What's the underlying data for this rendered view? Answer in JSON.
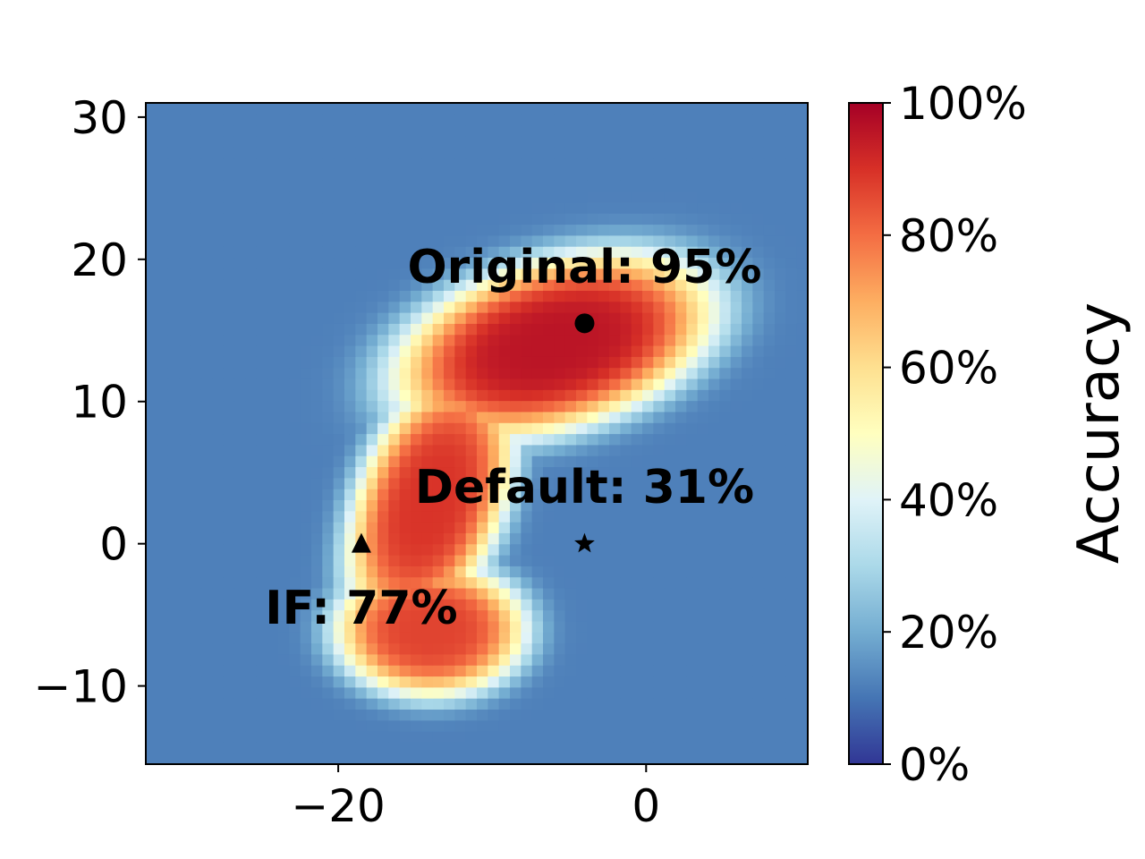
{
  "chart_data": {
    "type": "heatmap",
    "title": "",
    "xlabel": "",
    "ylabel": "",
    "xlim": [
      -32.5,
      10.5
    ],
    "ylim": [
      -15.5,
      31
    ],
    "x_ticks": [
      {
        "value": -20,
        "label": "−20"
      },
      {
        "value": 0,
        "label": "0"
      }
    ],
    "y_ticks": [
      {
        "value": 30,
        "label": "30"
      },
      {
        "value": 20,
        "label": "20"
      },
      {
        "value": 10,
        "label": "10"
      },
      {
        "value": 0,
        "label": "0"
      },
      {
        "value": -10,
        "label": "−10"
      }
    ],
    "grid_resolution": [
      60,
      60
    ],
    "surface_components": [
      {
        "name": "upper-lobe",
        "center": [
          -6,
          14
        ],
        "sigma_major": 9.5,
        "sigma_minor": 5.2,
        "angle_deg": 18,
        "peak": 0.95
      },
      {
        "name": "left-arm",
        "center": [
          -14,
          3
        ],
        "sigma_major": 8.5,
        "sigma_minor": 4.2,
        "angle_deg": 72,
        "peak": 0.88
      },
      {
        "name": "lower-lobe",
        "center": [
          -14,
          -6
        ],
        "sigma_major": 5.5,
        "sigma_minor": 4.2,
        "angle_deg": 0,
        "peak": 0.85
      }
    ],
    "background_accuracy": 0.12,
    "points": [
      {
        "name": "Original",
        "marker": "circle",
        "x": -4,
        "y": 15.5,
        "accuracy": 0.95,
        "label": "Original: 95%"
      },
      {
        "name": "Default",
        "marker": "star",
        "x": -4,
        "y": 0,
        "accuracy": 0.31,
        "label": "Default: 31%"
      },
      {
        "name": "IF",
        "marker": "triangle",
        "x": -18.5,
        "y": 0,
        "accuracy": 0.77,
        "label": "IF: 77%"
      }
    ],
    "annotation_anchors": [
      {
        "point": "Original",
        "x": -4,
        "y": 19.5
      },
      {
        "point": "Default",
        "x": -4,
        "y": 4
      },
      {
        "point": "IF",
        "x": -18.5,
        "y": -4.5
      }
    ],
    "colorbar": {
      "label": "Accuracy",
      "range": [
        0,
        1
      ],
      "colormap": "RdYlBu_r",
      "stops": [
        "#313695",
        "#4575b4",
        "#74add1",
        "#abd9e9",
        "#e0f3f8",
        "#ffffbf",
        "#fee090",
        "#fdae61",
        "#f46d43",
        "#d73027",
        "#a50026"
      ],
      "ticks": [
        {
          "value": 0,
          "label": "0%"
        },
        {
          "value": 0.2,
          "label": "20%"
        },
        {
          "value": 0.4,
          "label": "40%"
        },
        {
          "value": 0.6,
          "label": "60%"
        },
        {
          "value": 0.8,
          "label": "80%"
        },
        {
          "value": 1.0,
          "label": "100%"
        }
      ]
    }
  }
}
